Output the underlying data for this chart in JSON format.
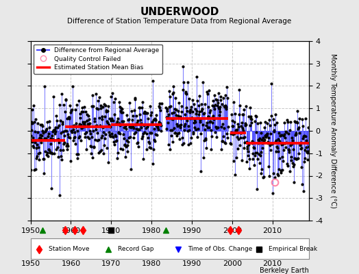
{
  "title": "UNDERWOOD",
  "subtitle": "Difference of Station Temperature Data from Regional Average",
  "ylabel": "Monthly Temperature Anomaly Difference (°C)",
  "xlabel_credit": "Berkeley Earth",
  "xlim": [
    1950,
    2019
  ],
  "ylim": [
    -4,
    4
  ],
  "yticks": [
    -4,
    -3,
    -2,
    -1,
    0,
    1,
    2,
    3,
    4
  ],
  "xticks": [
    1950,
    1960,
    1970,
    1980,
    1990,
    2000,
    2010
  ],
  "background_color": "#e8e8e8",
  "plot_bg_color": "#ffffff",
  "grid_color": "#c8c8c8",
  "line_color": "#4444ff",
  "marker_color": "#000000",
  "bias_color": "#ff0000",
  "segments": [
    {
      "x_start": 1950.0,
      "x_end": 1958.5,
      "bias": -0.42
    },
    {
      "x_start": 1958.5,
      "x_end": 1963.0,
      "bias": 0.18
    },
    {
      "x_start": 1963.0,
      "x_end": 1970.0,
      "bias": 0.18
    },
    {
      "x_start": 1970.0,
      "x_end": 1982.5,
      "bias": 0.28
    },
    {
      "x_start": 1983.5,
      "x_end": 1999.0,
      "bias": 0.55
    },
    {
      "x_start": 1999.5,
      "x_end": 2001.5,
      "bias": -0.08
    },
    {
      "x_start": 2001.5,
      "x_end": 2003.5,
      "bias": -0.08
    },
    {
      "x_start": 2003.5,
      "x_end": 2019.0,
      "bias": -0.55
    }
  ],
  "data_gaps": [
    [
      1982.5,
      1983.5
    ],
    [
      1999.0,
      1999.5
    ]
  ],
  "station_moves": [
    1958.5,
    1961.0,
    1963.0,
    1999.5,
    2001.5
  ],
  "record_gaps": [
    1953.0,
    1983.5
  ],
  "obs_changes": [],
  "empirical_breaks": [
    1970.0
  ],
  "qc_failed_x": 2010.5,
  "qc_failed_y": -2.3,
  "noise_scale": 0.72,
  "seed": 17
}
